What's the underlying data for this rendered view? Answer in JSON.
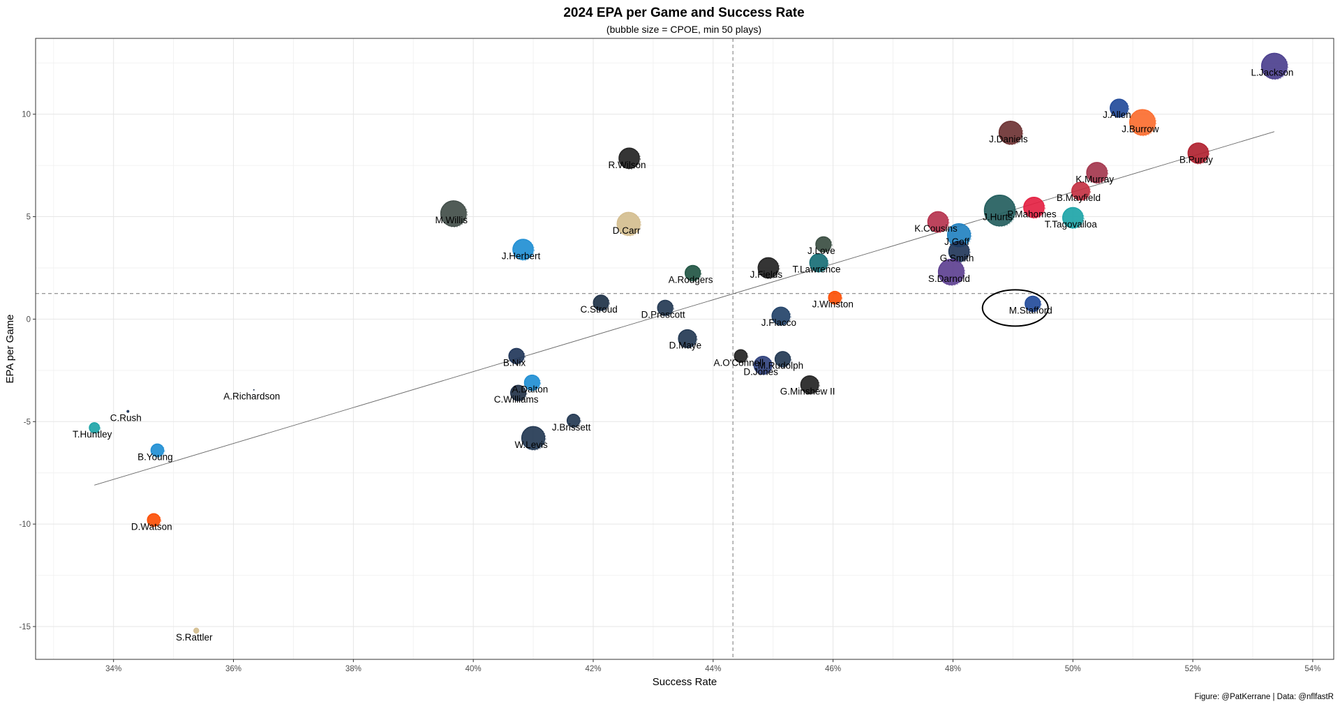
{
  "chart_data": {
    "type": "scatter",
    "title": "2024 EPA per Game and Success Rate",
    "subtitle": "(bubble size = CPOE, min 50 plays)",
    "xlabel": "Success Rate",
    "ylabel": "EPA per Game",
    "caption": "Figure: @PatKerrane | Data: @nflfastR",
    "xlim": [
      0.327,
      0.5435
    ],
    "ylim": [
      -16.6,
      13.7
    ],
    "x_ticks": [
      0.34,
      0.36,
      0.38,
      0.4,
      0.42,
      0.44,
      0.46,
      0.48,
      0.5,
      0.52,
      0.54
    ],
    "x_tick_labels": [
      "34%",
      "36%",
      "38%",
      "40%",
      "42%",
      "44%",
      "46%",
      "48%",
      "50%",
      "52%",
      "54%"
    ],
    "y_ticks": [
      -15,
      -10,
      -5,
      0,
      5,
      10
    ],
    "y_tick_labels": [
      "-15",
      "-10",
      "-5",
      "0",
      "5",
      "10"
    ],
    "grid": true,
    "legend": "none",
    "reference_lines": {
      "mean_x": 0.4433,
      "mean_y": 1.25
    },
    "trend_line": {
      "x": [
        0.3368,
        0.5336
      ],
      "y": [
        -8.1,
        9.15
      ]
    },
    "highlight": {
      "name": "M.Stafford",
      "shape": "ellipse"
    },
    "points": [
      {
        "name": "L.Jackson",
        "x": 0.5336,
        "y": 12.35,
        "size": 10,
        "color": "#483C8C"
      },
      {
        "name": "J.Allen",
        "x": 0.5077,
        "y": 10.3,
        "size": 7,
        "color": "#1F4899"
      },
      {
        "name": "J.Burrow",
        "x": 0.5116,
        "y": 9.6,
        "size": 10,
        "color": "#FB6A2B"
      },
      {
        "name": "J.Daniels",
        "x": 0.4896,
        "y": 9.1,
        "size": 9,
        "color": "#6A2F30"
      },
      {
        "name": "B.Purdy",
        "x": 0.5209,
        "y": 8.1,
        "size": 8,
        "color": "#AF1E2C"
      },
      {
        "name": "R.Wilson",
        "x": 0.426,
        "y": 7.85,
        "size": 8,
        "color": "#1F1F1F"
      },
      {
        "name": "K.Murray",
        "x": 0.504,
        "y": 7.15,
        "size": 8,
        "color": "#A2334A"
      },
      {
        "name": "B.Mayfield",
        "x": 0.5013,
        "y": 6.25,
        "size": 7,
        "color": "#C32E3F"
      },
      {
        "name": "M.Willis",
        "x": 0.3967,
        "y": 5.15,
        "size": 10,
        "color": "#3E4A45"
      },
      {
        "name": "J.Hurts",
        "x": 0.4878,
        "y": 5.3,
        "size": 12,
        "color": "#1F5B5B"
      },
      {
        "name": "P.Mahomes",
        "x": 0.4935,
        "y": 5.45,
        "size": 8,
        "color": "#E31D3F"
      },
      {
        "name": "K.Cousins",
        "x": 0.4775,
        "y": 4.75,
        "size": 8,
        "color": "#B5304B"
      },
      {
        "name": "T.Tagovailoa",
        "x": 0.5,
        "y": 4.95,
        "size": 8,
        "color": "#1AA3A6"
      },
      {
        "name": "D.Carr",
        "x": 0.4259,
        "y": 4.65,
        "size": 9,
        "color": "#D3BC8D"
      },
      {
        "name": "J.Goff",
        "x": 0.481,
        "y": 4.1,
        "size": 9,
        "color": "#1E7FC0"
      },
      {
        "name": "J.Love",
        "x": 0.4584,
        "y": 3.65,
        "size": 6,
        "color": "#364A3E"
      },
      {
        "name": "J.Herbert",
        "x": 0.4083,
        "y": 3.4,
        "size": 8,
        "color": "#1C8DD3"
      },
      {
        "name": "G.Smith",
        "x": 0.481,
        "y": 3.3,
        "size": 8,
        "color": "#1D3357"
      },
      {
        "name": "T.Lawrence",
        "x": 0.4576,
        "y": 2.75,
        "size": 7,
        "color": "#136B73"
      },
      {
        "name": "J.Fields",
        "x": 0.4492,
        "y": 2.5,
        "size": 8,
        "color": "#1F1F1F"
      },
      {
        "name": "S.Darnold",
        "x": 0.4797,
        "y": 2.3,
        "size": 10,
        "color": "#5B3D8F"
      },
      {
        "name": "A.Rodgers",
        "x": 0.4366,
        "y": 2.25,
        "size": 6,
        "color": "#1D5240"
      },
      {
        "name": "J.Winston",
        "x": 0.4603,
        "y": 1.05,
        "size": 5,
        "color": "#FC4C02"
      },
      {
        "name": "M.Stafford",
        "x": 0.4933,
        "y": 0.75,
        "size": 6,
        "color": "#1F4899"
      },
      {
        "name": "C.Stroud",
        "x": 0.4213,
        "y": 0.8,
        "size": 6,
        "color": "#1A2D44"
      },
      {
        "name": "D.Prescott",
        "x": 0.432,
        "y": 0.55,
        "size": 6,
        "color": "#1F3550"
      },
      {
        "name": "J.Flacco",
        "x": 0.4513,
        "y": 0.15,
        "size": 7,
        "color": "#1F3F66"
      },
      {
        "name": "D.Maye",
        "x": 0.4357,
        "y": -0.95,
        "size": 7,
        "color": "#1F3550"
      },
      {
        "name": "B.Nix",
        "x": 0.4072,
        "y": -1.8,
        "size": 6,
        "color": "#1D3357"
      },
      {
        "name": "A.O'Connell",
        "x": 0.4446,
        "y": -1.8,
        "size": 5,
        "color": "#1F1F1F"
      },
      {
        "name": "M.Rudolph",
        "x": 0.4516,
        "y": -1.95,
        "size": 6,
        "color": "#1F3550"
      },
      {
        "name": "D.Jones",
        "x": 0.4483,
        "y": -2.25,
        "size": 7,
        "color": "#2C3E7A"
      },
      {
        "name": "A.Dalton",
        "x": 0.4098,
        "y": -3.1,
        "size": 6,
        "color": "#1C8DD3"
      },
      {
        "name": "G.Minshew II",
        "x": 0.4561,
        "y": -3.2,
        "size": 7,
        "color": "#1F1F1F"
      },
      {
        "name": "C.Williams",
        "x": 0.4075,
        "y": -3.6,
        "size": 6,
        "color": "#1D2D44"
      },
      {
        "name": "A.Richardson",
        "x": 0.3634,
        "y": -3.45,
        "size": 0.3,
        "color": "#1F3550"
      },
      {
        "name": "C.Rush",
        "x": 0.3424,
        "y": -4.5,
        "size": 0.8,
        "color": "#1D3357"
      },
      {
        "name": "T.Huntley",
        "x": 0.3368,
        "y": -5.3,
        "size": 4,
        "color": "#1AA3A6"
      },
      {
        "name": "J.Brissett",
        "x": 0.4167,
        "y": -4.95,
        "size": 5,
        "color": "#1F3550"
      },
      {
        "name": "W.Levis",
        "x": 0.41,
        "y": -5.8,
        "size": 9,
        "color": "#1F3550"
      },
      {
        "name": "B.Young",
        "x": 0.3473,
        "y": -6.4,
        "size": 5,
        "color": "#1C8DD3"
      },
      {
        "name": "D.Watson",
        "x": 0.3467,
        "y": -9.8,
        "size": 5,
        "color": "#FC4C02"
      },
      {
        "name": "S.Rattler",
        "x": 0.3538,
        "y": -15.2,
        "size": 2,
        "color": "#D3BC8D"
      }
    ]
  }
}
